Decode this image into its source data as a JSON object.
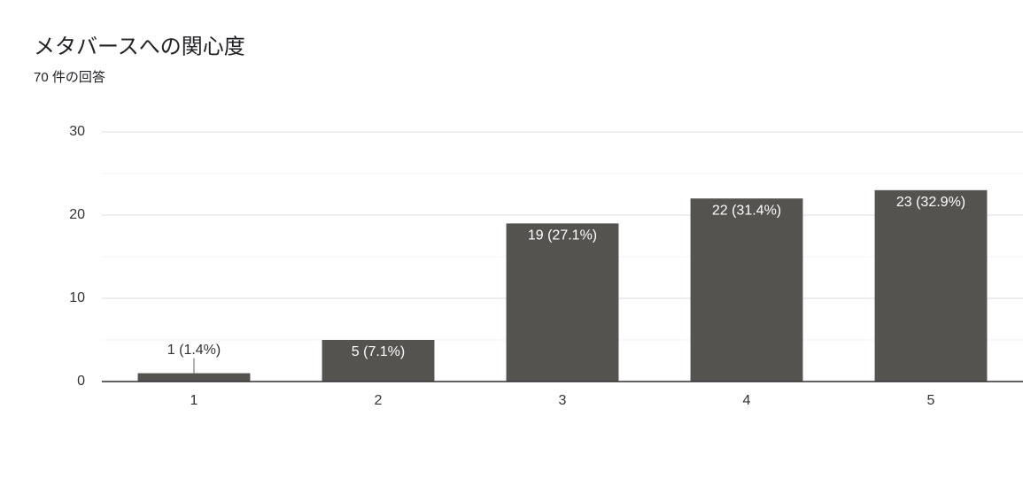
{
  "chart_data": {
    "type": "bar",
    "title": "メタバースへの関心度",
    "subtitle": "70 件の回答",
    "categories": [
      "1",
      "2",
      "3",
      "4",
      "5"
    ],
    "values": [
      1,
      5,
      19,
      22,
      23
    ],
    "value_labels": [
      "1 (1.4%)",
      "5 (7.1%)",
      "19 (27.1%)",
      "22 (31.4%)",
      "23 (32.9%)"
    ],
    "color": "#555350",
    "ylim": [
      0,
      30
    ],
    "yticks": [
      0,
      10,
      20,
      30
    ],
    "yminorticks": [
      5,
      15,
      25
    ],
    "grid": true
  }
}
